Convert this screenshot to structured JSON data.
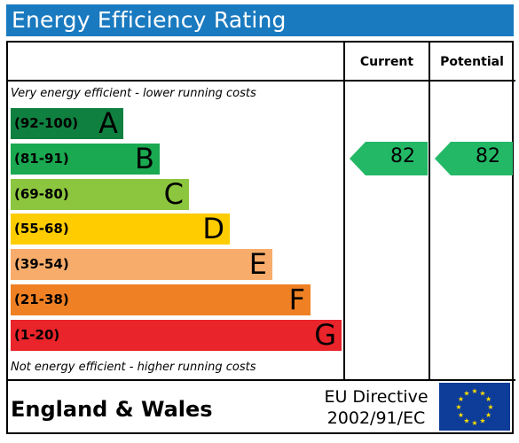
{
  "title": "Energy Efficiency Rating",
  "columns": {
    "current": "Current",
    "potential": "Potential"
  },
  "notes": {
    "top": "Very energy efficient - lower running costs",
    "bottom": "Not energy efficient - higher running costs"
  },
  "footer": {
    "region": "England & Wales",
    "directive_line1": "EU Directive",
    "directive_line2": "2002/91/EC",
    "flag_icon": "eu-flag-icon"
  },
  "chart_data": {
    "type": "bar",
    "bands": [
      {
        "letter": "A",
        "range": "(92-100)",
        "min": 92,
        "max": 100,
        "color": "#108040",
        "text_color": "#000000"
      },
      {
        "letter": "B",
        "range": "(81-91)",
        "min": 81,
        "max": 91,
        "color": "#1aa850",
        "text_color": "#000000"
      },
      {
        "letter": "C",
        "range": "(69-80)",
        "min": 69,
        "max": 80,
        "color": "#8cc63f",
        "text_color": "#000000"
      },
      {
        "letter": "D",
        "range": "(55-68)",
        "min": 55,
        "max": 68,
        "color": "#ffcc00",
        "text_color": "#000000"
      },
      {
        "letter": "E",
        "range": "(39-54)",
        "min": 39,
        "max": 54,
        "color": "#f7ac6b",
        "text_color": "#000000"
      },
      {
        "letter": "F",
        "range": "(21-38)",
        "min": 21,
        "max": 38,
        "color": "#ef8023",
        "text_color": "#000000"
      },
      {
        "letter": "G",
        "range": "(1-20)",
        "min": 1,
        "max": 20,
        "color": "#e9242a",
        "text_color": "#000000"
      }
    ],
    "current": {
      "value": 82,
      "band": "B",
      "color": "#23b866"
    },
    "potential": {
      "value": 82,
      "band": "B",
      "color": "#23b866"
    }
  }
}
